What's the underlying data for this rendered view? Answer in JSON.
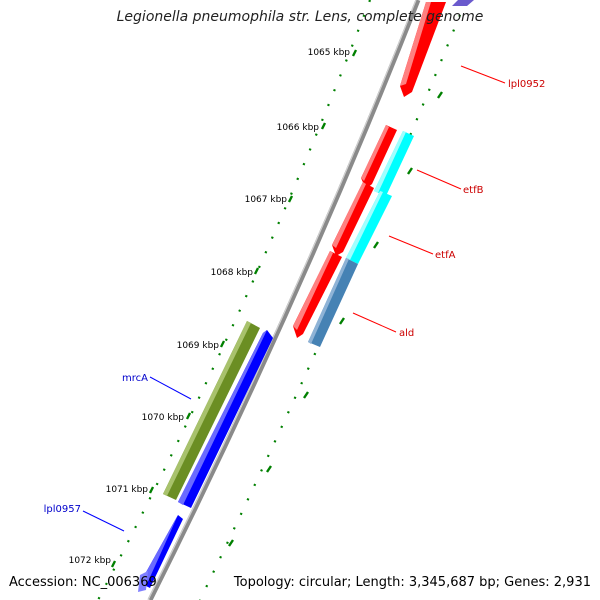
{
  "title": "Legionella pneumophila str. Lens, complete genome",
  "accession": "Accession: NC_006369",
  "summary": "Topology: circular; Length: 3,345,687 bp; Genes: 2,931",
  "ticks": [
    "1065 kbp",
    "1066 kbp",
    "1067 kbp",
    "1068 kbp",
    "1069 kbp",
    "1070 kbp",
    "1071 kbp",
    "1072 kbp"
  ],
  "genes": [
    {
      "label": "lpl0952",
      "strand": "forward",
      "color": "#ff0000"
    },
    {
      "label": "etfB",
      "strand": "forward",
      "color": "#00ffff"
    },
    {
      "label": "etfA",
      "strand": "forward",
      "color": "#00ffff"
    },
    {
      "label": "ald",
      "strand": "forward",
      "color": "#4682b4"
    },
    {
      "label": "mrcA",
      "strand": "reverse",
      "color": "#6b8e23"
    },
    {
      "label": "lpl0957",
      "strand": "reverse",
      "color": "#0000ff"
    }
  ],
  "colors": {
    "backbone": "#888888",
    "forward_label": "#cc0000",
    "reverse_label": "#0000cc",
    "tick": "#008000"
  }
}
